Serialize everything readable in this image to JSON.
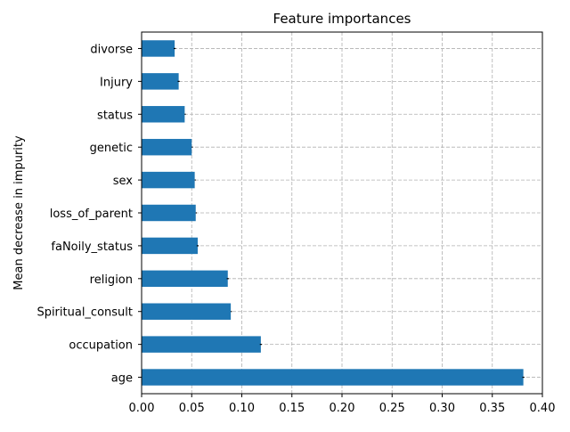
{
  "chart_data": {
    "type": "bar",
    "orientation": "horizontal",
    "title": "Feature importances",
    "xlabel": "",
    "ylabel": "Mean decrease in impurity",
    "categories": [
      "age",
      "occupation",
      "Spiritual_consult",
      "religion",
      "faNoily_status",
      "loss_of_parent",
      "sex",
      "genetic",
      "status",
      "Injury",
      "divorse"
    ],
    "values": [
      0.381,
      0.119,
      0.089,
      0.086,
      0.056,
      0.054,
      0.053,
      0.05,
      0.043,
      0.037,
      0.033
    ],
    "errors": [
      0.001,
      0.001,
      0.0,
      0.001,
      0.001,
      0.0,
      0.0,
      0.0,
      0.0,
      0.001,
      0.001
    ],
    "xlim": [
      0.0,
      0.4
    ],
    "xticks": [
      "0.00",
      "0.05",
      "0.10",
      "0.15",
      "0.20",
      "0.25",
      "0.30",
      "0.35",
      "0.40"
    ],
    "grid": true,
    "legend": "none",
    "colors": {
      "bar": "#1f77b4",
      "error": "#000000",
      "grid": "#b0b0b0"
    }
  }
}
